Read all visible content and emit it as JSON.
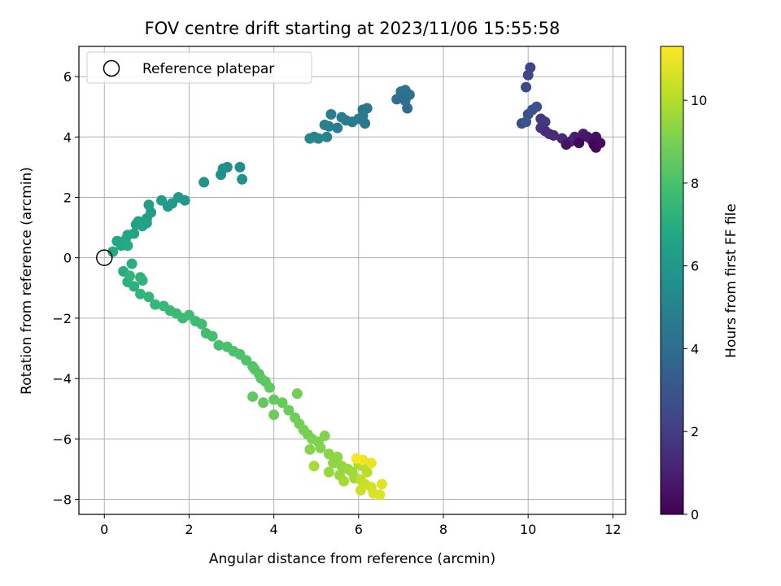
{
  "chart_data": {
    "type": "scatter",
    "title": "FOV centre drift starting at 2023/11/06 15:55:58",
    "xlabel": "Angular distance from reference (arcmin)",
    "ylabel": "Rotation from reference (arcmin)",
    "colorbar_label": "Hours from first FF file",
    "xlim": [
      -0.6,
      12.3
    ],
    "ylim": [
      -8.5,
      7.0
    ],
    "colorbar_range": [
      0,
      11.3
    ],
    "x_ticks": [
      0,
      2,
      4,
      6,
      8,
      10,
      12
    ],
    "y_ticks": [
      -8,
      -6,
      -4,
      -2,
      0,
      2,
      4,
      6
    ],
    "colorbar_ticks": [
      0,
      2,
      4,
      6,
      8,
      10
    ],
    "grid": true,
    "colormap": "viridis",
    "legend": {
      "position": "top-left",
      "entries": [
        "Reference platepar"
      ]
    },
    "reference_point": {
      "x": 0,
      "y": 0
    },
    "points": [
      [
        10.05,
        6.3,
        2.3
      ],
      [
        10.0,
        6.05,
        2.4
      ],
      [
        9.95,
        5.65,
        2.5
      ],
      [
        9.85,
        4.45,
        2.6
      ],
      [
        10.0,
        4.75,
        2.7
      ],
      [
        10.2,
        5.0,
        2.8
      ],
      [
        10.1,
        4.9,
        2.9
      ],
      [
        9.95,
        4.5,
        3.0
      ],
      [
        10.3,
        4.6,
        1.9
      ],
      [
        10.4,
        4.5,
        1.8
      ],
      [
        10.3,
        4.3,
        1.7
      ],
      [
        10.5,
        4.1,
        1.6
      ],
      [
        10.4,
        4.2,
        1.5
      ],
      [
        10.6,
        4.05,
        1.4
      ],
      [
        10.8,
        3.95,
        1.3
      ],
      [
        10.9,
        3.8,
        1.2
      ],
      [
        11.0,
        3.85,
        1.1
      ],
      [
        11.1,
        4.0,
        1.0
      ],
      [
        11.2,
        3.9,
        0.9
      ],
      [
        11.3,
        4.1,
        0.8
      ],
      [
        11.4,
        4.0,
        0.7
      ],
      [
        11.5,
        3.9,
        0.6
      ],
      [
        11.6,
        4.0,
        0.5
      ],
      [
        11.7,
        3.8,
        0.4
      ],
      [
        11.6,
        3.65,
        0.3
      ],
      [
        11.55,
        3.75,
        0.2
      ],
      [
        11.2,
        3.8,
        0.15
      ],
      [
        10.9,
        3.75,
        0.6
      ],
      [
        7.0,
        5.5,
        4.3
      ],
      [
        7.1,
        5.55,
        4.25
      ],
      [
        7.2,
        5.4,
        4.2
      ],
      [
        7.0,
        5.3,
        4.15
      ],
      [
        7.1,
        5.2,
        4.1
      ],
      [
        6.9,
        5.25,
        4.05
      ],
      [
        7.15,
        4.95,
        4.0
      ],
      [
        6.1,
        4.9,
        4.4
      ],
      [
        6.2,
        4.95,
        4.45
      ],
      [
        6.1,
        4.7,
        4.5
      ],
      [
        6.0,
        4.6,
        4.55
      ],
      [
        6.15,
        4.45,
        4.6
      ],
      [
        5.85,
        4.5,
        4.65
      ],
      [
        5.7,
        4.55,
        4.7
      ],
      [
        5.6,
        4.65,
        4.75
      ],
      [
        5.5,
        4.3,
        4.8
      ],
      [
        5.35,
        4.75,
        4.85
      ],
      [
        5.3,
        4.35,
        4.9
      ],
      [
        5.2,
        4.4,
        4.95
      ],
      [
        5.25,
        4.0,
        5.0
      ],
      [
        5.05,
        3.95,
        5.05
      ],
      [
        4.95,
        4.0,
        5.1
      ],
      [
        4.85,
        3.95,
        5.15
      ],
      [
        3.2,
        3.0,
        5.5
      ],
      [
        2.8,
        2.95,
        5.55
      ],
      [
        2.9,
        3.0,
        5.6
      ],
      [
        2.75,
        2.75,
        5.65
      ],
      [
        3.25,
        2.6,
        5.7
      ],
      [
        2.35,
        2.5,
        5.75
      ],
      [
        1.9,
        1.9,
        6.0
      ],
      [
        1.75,
        2.0,
        6.05
      ],
      [
        1.6,
        1.8,
        6.1
      ],
      [
        1.5,
        1.7,
        6.15
      ],
      [
        1.35,
        1.9,
        6.2
      ],
      [
        1.05,
        1.75,
        6.25
      ],
      [
        1.1,
        1.5,
        6.3
      ],
      [
        1.0,
        1.3,
        6.35
      ],
      [
        0.8,
        1.2,
        6.4
      ],
      [
        0.75,
        1.1,
        6.45
      ],
      [
        0.9,
        1.05,
        6.5
      ],
      [
        1.0,
        1.15,
        6.55
      ],
      [
        0.7,
        0.8,
        6.6
      ],
      [
        0.55,
        0.75,
        6.65
      ],
      [
        0.5,
        0.6,
        6.7
      ],
      [
        0.3,
        0.55,
        6.75
      ],
      [
        0.4,
        0.4,
        6.8
      ],
      [
        0.2,
        0.2,
        6.85
      ],
      [
        0.55,
        0.4,
        6.9
      ],
      [
        0.45,
        -0.45,
        7.0
      ],
      [
        0.65,
        -0.2,
        7.05
      ],
      [
        0.55,
        -0.8,
        7.1
      ],
      [
        0.7,
        -0.95,
        7.15
      ],
      [
        0.85,
        -0.65,
        7.2
      ],
      [
        0.9,
        -0.75,
        7.25
      ],
      [
        0.6,
        -0.6,
        7.3
      ],
      [
        0.85,
        -1.2,
        7.35
      ],
      [
        1.05,
        -1.3,
        7.4
      ],
      [
        1.2,
        -1.55,
        7.45
      ],
      [
        1.4,
        -1.6,
        7.5
      ],
      [
        1.55,
        -1.75,
        7.55
      ],
      [
        1.7,
        -1.85,
        7.6
      ],
      [
        1.85,
        -2.0,
        7.65
      ],
      [
        2.0,
        -1.9,
        7.7
      ],
      [
        2.15,
        -2.1,
        7.75
      ],
      [
        2.3,
        -2.2,
        7.8
      ],
      [
        2.4,
        -2.5,
        7.85
      ],
      [
        2.55,
        -2.6,
        7.9
      ],
      [
        2.7,
        -2.9,
        7.95
      ],
      [
        2.9,
        -2.95,
        8.0
      ],
      [
        3.05,
        -3.1,
        8.05
      ],
      [
        3.2,
        -3.2,
        8.1
      ],
      [
        3.35,
        -3.4,
        8.15
      ],
      [
        3.5,
        -3.6,
        8.2
      ],
      [
        3.55,
        -3.7,
        8.25
      ],
      [
        3.65,
        -3.85,
        8.3
      ],
      [
        3.7,
        -4.0,
        8.35
      ],
      [
        3.8,
        -4.1,
        8.4
      ],
      [
        3.9,
        -4.3,
        8.45
      ],
      [
        3.5,
        -4.6,
        8.5
      ],
      [
        3.75,
        -4.8,
        8.55
      ],
      [
        4.0,
        -4.7,
        8.6
      ],
      [
        4.2,
        -4.8,
        8.65
      ],
      [
        4.35,
        -5.05,
        8.7
      ],
      [
        4.0,
        -5.2,
        8.75
      ],
      [
        4.5,
        -5.3,
        8.8
      ],
      [
        4.55,
        -4.5,
        8.85
      ],
      [
        4.6,
        -5.5,
        8.9
      ],
      [
        4.7,
        -5.7,
        8.95
      ],
      [
        4.8,
        -5.85,
        9.0
      ],
      [
        4.9,
        -6.0,
        9.05
      ],
      [
        5.05,
        -6.1,
        9.1
      ],
      [
        5.2,
        -5.9,
        9.15
      ],
      [
        5.1,
        -6.3,
        9.2
      ],
      [
        4.85,
        -6.35,
        9.25
      ],
      [
        5.3,
        -6.5,
        9.3
      ],
      [
        5.5,
        -6.6,
        9.35
      ],
      [
        5.4,
        -6.8,
        9.4
      ],
      [
        5.6,
        -6.9,
        9.45
      ],
      [
        5.3,
        -7.1,
        9.5
      ],
      [
        5.55,
        -7.2,
        9.55
      ],
      [
        5.75,
        -7.0,
        9.6
      ],
      [
        5.85,
        -7.1,
        9.65
      ],
      [
        5.9,
        -7.3,
        9.7
      ],
      [
        5.65,
        -7.4,
        9.75
      ],
      [
        4.95,
        -6.9,
        9.8
      ],
      [
        6.0,
        -6.85,
        9.9
      ],
      [
        6.1,
        -6.9,
        10.0
      ],
      [
        6.2,
        -7.1,
        10.1
      ],
      [
        6.05,
        -7.35,
        10.2
      ],
      [
        6.15,
        -7.5,
        10.3
      ],
      [
        6.05,
        -7.7,
        10.4
      ],
      [
        6.3,
        -7.6,
        10.5
      ],
      [
        6.35,
        -7.8,
        10.6
      ],
      [
        6.5,
        -7.85,
        10.7
      ],
      [
        6.55,
        -7.5,
        10.8
      ],
      [
        6.3,
        -6.8,
        10.9
      ],
      [
        6.1,
        -6.7,
        11.0
      ],
      [
        5.95,
        -6.65,
        11.1
      ]
    ]
  }
}
